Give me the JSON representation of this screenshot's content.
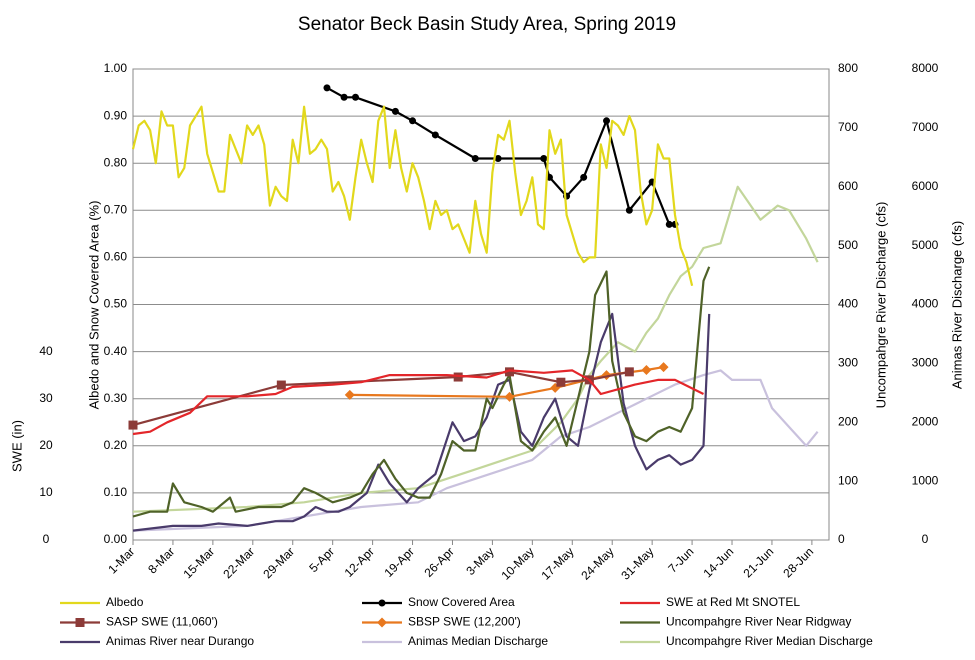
{
  "chart_data": {
    "type": "line",
    "title": "Senator Beck Basin Study Area, Spring 2019",
    "ylabel": "Albedo and Snow Covered Area (%)",
    "y2label": "Uncompahgre River Discharge (cfs)",
    "y3label": "Animas River Discharge (cfs)",
    "y4label": "SWE (in)",
    "xlim": [
      0,
      122
    ],
    "xticks": [
      {
        "value": 0,
        "label": "1-Mar"
      },
      {
        "value": 7,
        "label": "8-Mar"
      },
      {
        "value": 14,
        "label": "15-Mar"
      },
      {
        "value": 21,
        "label": "22-Mar"
      },
      {
        "value": 28,
        "label": "29-Mar"
      },
      {
        "value": 35,
        "label": "5-Apr"
      },
      {
        "value": 42,
        "label": "12-Apr"
      },
      {
        "value": 49,
        "label": "19-Apr"
      },
      {
        "value": 56,
        "label": "26-Apr"
      },
      {
        "value": 63,
        "label": "3-May"
      },
      {
        "value": 70,
        "label": "10-May"
      },
      {
        "value": 77,
        "label": "17-May"
      },
      {
        "value": 84,
        "label": "24-May"
      },
      {
        "value": 91,
        "label": "31-May"
      },
      {
        "value": 98,
        "label": "7-Jun"
      },
      {
        "value": 105,
        "label": "14-Jun"
      },
      {
        "value": 112,
        "label": "21-Jun"
      },
      {
        "value": 119,
        "label": "28-Jun"
      }
    ],
    "ylim": [
      0,
      1
    ],
    "yticks": [
      {
        "value": 0,
        "label": "0.00"
      },
      {
        "value": 0.1,
        "label": "0.10"
      },
      {
        "value": 0.2,
        "label": "0.20"
      },
      {
        "value": 0.3,
        "label": "0.30"
      },
      {
        "value": 0.4,
        "label": "0.40"
      },
      {
        "value": 0.5,
        "label": "0.50"
      },
      {
        "value": 0.6,
        "label": "0.60"
      },
      {
        "value": 0.7,
        "label": "0.70"
      },
      {
        "value": 0.8,
        "label": "0.80"
      },
      {
        "value": 0.9,
        "label": "0.90"
      },
      {
        "value": 1,
        "label": "1.00"
      }
    ],
    "y2lim": [
      0,
      800
    ],
    "y2ticks": [
      0,
      100,
      200,
      300,
      400,
      500,
      600,
      700,
      800
    ],
    "y3lim": [
      0,
      8000
    ],
    "y3ticks": [
      0,
      1000,
      2000,
      3000,
      4000,
      5000,
      6000,
      7000,
      8000
    ],
    "y4lim": [
      0,
      100
    ],
    "y4ticks": [
      0,
      10,
      20,
      30,
      40
    ],
    "grid": true,
    "legend": "bottom",
    "series": [
      {
        "name": "Albedo",
        "color": "#e2d81c",
        "axis": "y",
        "x": [
          0,
          1,
          2,
          3,
          4,
          5,
          6,
          7,
          8,
          9,
          10,
          11,
          12,
          13,
          14,
          15,
          16,
          17,
          18,
          19,
          20,
          21,
          22,
          23,
          24,
          25,
          26,
          27,
          28,
          29,
          30,
          31,
          32,
          33,
          34,
          35,
          36,
          37,
          38,
          39,
          40,
          41,
          42,
          43,
          44,
          45,
          46,
          47,
          48,
          49,
          50,
          51,
          52,
          53,
          54,
          55,
          56,
          57,
          58,
          59,
          60,
          61,
          62,
          63,
          64,
          65,
          66,
          67,
          68,
          69,
          70,
          71,
          72,
          73,
          74,
          75,
          76,
          77,
          78,
          79,
          80,
          81,
          82,
          83,
          84,
          85,
          86,
          87,
          88,
          89,
          90,
          91,
          92,
          93,
          94,
          95,
          96,
          97,
          98
        ],
        "values": [
          0.83,
          0.88,
          0.89,
          0.87,
          0.8,
          0.91,
          0.88,
          0.88,
          0.77,
          0.79,
          0.88,
          0.9,
          0.92,
          0.82,
          0.78,
          0.74,
          0.74,
          0.86,
          0.83,
          0.8,
          0.88,
          0.86,
          0.88,
          0.84,
          0.71,
          0.75,
          0.73,
          0.72,
          0.85,
          0.8,
          0.92,
          0.82,
          0.83,
          0.85,
          0.83,
          0.74,
          0.76,
          0.73,
          0.68,
          0.77,
          0.85,
          0.8,
          0.76,
          0.89,
          0.92,
          0.79,
          0.87,
          0.79,
          0.74,
          0.8,
          0.77,
          0.72,
          0.66,
          0.72,
          0.69,
          0.7,
          0.66,
          0.67,
          0.64,
          0.61,
          0.72,
          0.65,
          0.61,
          0.78,
          0.86,
          0.85,
          0.89,
          0.78,
          0.69,
          0.72,
          0.77,
          0.67,
          0.66,
          0.87,
          0.82,
          0.85,
          0.69,
          0.65,
          0.61,
          0.59,
          0.6,
          0.6,
          0.84,
          0.79,
          0.89,
          0.88,
          0.86,
          0.9,
          0.87,
          0.74,
          0.67,
          0.7,
          0.84,
          0.81,
          0.81,
          0.69,
          0.62,
          0.59,
          0.54
        ]
      },
      {
        "name": "Snow Covered Area",
        "color": "#000000",
        "axis": "y",
        "marker": "circle",
        "x": [
          34,
          37,
          39,
          46,
          49,
          53,
          60,
          64,
          72,
          73,
          76,
          79,
          83,
          87,
          91,
          94,
          95
        ],
        "values": [
          0.96,
          0.94,
          0.94,
          0.91,
          0.89,
          0.86,
          0.81,
          0.81,
          0.81,
          0.77,
          0.73,
          0.77,
          0.89,
          0.7,
          0.76,
          0.67,
          0.67
        ]
      },
      {
        "name": "SWE at Red Mt SNOTEL",
        "color": "#e3262a",
        "axis": "y4",
        "x": [
          0,
          3,
          6,
          10,
          13,
          20,
          25,
          28,
          35,
          40,
          45,
          55,
          62,
          66,
          72,
          77,
          80,
          82,
          85,
          88,
          92,
          95,
          100
        ],
        "values": [
          22.5,
          23,
          25,
          27,
          30.5,
          30.5,
          31,
          32.5,
          33,
          33.5,
          35,
          35,
          34.5,
          36,
          35.5,
          36,
          34,
          31,
          32,
          33,
          34,
          34,
          31
        ]
      },
      {
        "name": "SASP SWE (11,060')",
        "color": "#8c3b38",
        "axis": "y4",
        "marker": "square",
        "x": [
          0,
          26,
          57,
          66,
          75,
          80,
          87
        ],
        "values": [
          24.4,
          32.9,
          34.6,
          35.7,
          33.5,
          34,
          35.7
        ]
      },
      {
        "name": "SBSP SWE (12,200')",
        "color": "#e8781e",
        "axis": "y4",
        "marker": "diamond",
        "x": [
          38,
          66,
          74,
          83,
          90,
          93
        ],
        "values": [
          30.8,
          30.4,
          32.3,
          35,
          36.1,
          36.7
        ]
      },
      {
        "name": "Uncompahgre River Near Ridgway",
        "color": "#4f6228",
        "axis": "y2",
        "x": [
          0,
          3,
          6,
          7,
          9,
          12,
          14,
          17,
          18,
          22,
          26,
          28,
          30,
          32,
          35,
          38,
          40,
          42,
          44,
          46,
          48,
          50,
          52,
          54,
          56,
          58,
          60,
          62,
          63,
          65,
          66,
          68,
          70,
          72,
          74,
          76,
          78,
          80,
          81,
          83,
          84,
          86,
          88,
          90,
          92,
          94,
          96,
          98,
          100,
          101
        ],
        "values": [
          40,
          48,
          48,
          96,
          64,
          56,
          48,
          72,
          48,
          56,
          56,
          64,
          88,
          80,
          64,
          72,
          80,
          112,
          136,
          104,
          80,
          72,
          72,
          112,
          168,
          152,
          152,
          240,
          224,
          264,
          280,
          168,
          152,
          184,
          208,
          160,
          240,
          320,
          416,
          456,
          304,
          216,
          176,
          168,
          184,
          192,
          184,
          224,
          440,
          464
        ]
      },
      {
        "name": "Animas River near Durango",
        "color": "#4a3b6b",
        "axis": "y3",
        "x": [
          0,
          7,
          12,
          15,
          20,
          25,
          28,
          30,
          32,
          34,
          36,
          38,
          41,
          43,
          45,
          48,
          50,
          53,
          56,
          58,
          60,
          62,
          64,
          66,
          68,
          70,
          72,
          74,
          76,
          78,
          80,
          82,
          84,
          86,
          88,
          90,
          92,
          94,
          96,
          98,
          100,
          101
        ],
        "values": [
          160,
          240,
          240,
          280,
          240,
          320,
          320,
          400,
          560,
          480,
          480,
          560,
          800,
          1280,
          960,
          640,
          880,
          1120,
          2000,
          1680,
          1760,
          2080,
          2640,
          2720,
          1840,
          1600,
          2080,
          2400,
          1760,
          1600,
          2560,
          3360,
          3840,
          2320,
          1600,
          1200,
          1360,
          1440,
          1280,
          1360,
          1600,
          3840
        ]
      },
      {
        "name": "Animas Median Discharge",
        "color": "#c9c1dd",
        "axis": "y3",
        "x": [
          0,
          20,
          30,
          40,
          50,
          55,
          60,
          65,
          70,
          75,
          80,
          85,
          90,
          95,
          100,
          103,
          105,
          110,
          112,
          115,
          118,
          120
        ],
        "values": [
          160,
          240,
          400,
          560,
          640,
          880,
          1040,
          1200,
          1360,
          1760,
          1920,
          2160,
          2400,
          2640,
          2800,
          2880,
          2720,
          2720,
          2240,
          1920,
          1600,
          1840
        ]
      },
      {
        "name": "Uncompahgre River Median Discharge",
        "color": "#c3d69b",
        "axis": "y2",
        "x": [
          0,
          20,
          30,
          40,
          50,
          55,
          60,
          65,
          70,
          75,
          78,
          80,
          82,
          85,
          88,
          90,
          92,
          94,
          96,
          98,
          100,
          103,
          106,
          110,
          113,
          115,
          118,
          120
        ],
        "values": [
          48,
          56,
          64,
          80,
          88,
          104,
          120,
          136,
          152,
          200,
          240,
          280,
          304,
          336,
          320,
          352,
          376,
          416,
          448,
          464,
          496,
          504,
          600,
          544,
          568,
          560,
          512,
          472
        ]
      }
    ]
  }
}
